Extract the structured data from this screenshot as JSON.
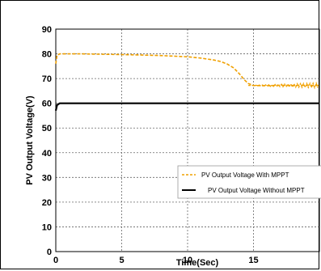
{
  "chart_data": {
    "type": "line",
    "xlabel": "Time(Sec)",
    "ylabel": "PV Output Voltage(V)",
    "xlim": [
      0,
      20
    ],
    "ylim": [
      0,
      90
    ],
    "x_ticks": [
      "0",
      "5",
      "10",
      "15"
    ],
    "y_ticks": [
      "0",
      "10",
      "20",
      "30",
      "40",
      "50",
      "60",
      "70",
      "80",
      "90"
    ],
    "grid": true,
    "legend_position": "center-right",
    "series": [
      {
        "name": "PV Output Voltage With MPPT",
        "color": "#f0a000",
        "style": "dashed",
        "x": [
          0,
          0.1,
          0.3,
          1,
          2,
          4,
          6,
          8,
          10,
          11,
          12,
          12.5,
          13,
          13.5,
          14,
          14.3,
          14.6,
          15,
          16,
          17,
          18,
          19,
          20
        ],
        "y": [
          76,
          79.5,
          80,
          80,
          80,
          79.8,
          79.6,
          79.3,
          78.8,
          78.3,
          77.5,
          76.9,
          75.9,
          74.3,
          71.5,
          69.5,
          68,
          67.2,
          67.1,
          67.3,
          67.2,
          67.3,
          67.2
        ]
      },
      {
        "name": "PV Output Voltage Without MPPT",
        "color": "#000000",
        "style": "solid",
        "x": [
          0,
          0.1,
          0.3,
          1,
          20
        ],
        "y": [
          57,
          59.3,
          60,
          60,
          60
        ]
      }
    ]
  }
}
